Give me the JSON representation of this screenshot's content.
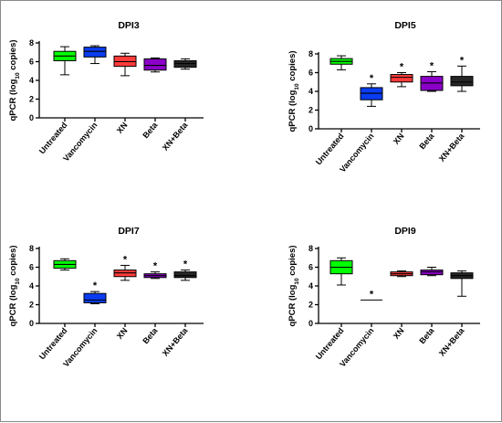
{
  "chart_data": [
    {
      "type": "box",
      "title": "DPI3",
      "ylabel": "qPCR (log10 copies)",
      "ylim": [
        0,
        8
      ],
      "yticks": [
        "0",
        "2",
        "4",
        "6",
        "8"
      ],
      "categories": [
        "Untreated",
        "Vancomycin",
        "XN",
        "Beta",
        "XN+Beta"
      ],
      "colors": [
        "#00ff00",
        "#0a3cf0",
        "#ff3b3b",
        "#8b00c8",
        "#262626"
      ],
      "boxes": [
        {
          "min": 4.6,
          "q1": 6.1,
          "median": 6.6,
          "q3": 7.1,
          "max": 7.6
        },
        {
          "min": 5.8,
          "q1": 6.5,
          "median": 7.1,
          "q3": 7.55,
          "max": 7.7
        },
        {
          "min": 4.5,
          "q1": 5.5,
          "median": 6.0,
          "q3": 6.6,
          "max": 6.9
        },
        {
          "min": 4.9,
          "q1": 5.1,
          "median": 5.6,
          "q3": 6.3,
          "max": 6.4
        },
        {
          "min": 5.2,
          "q1": 5.4,
          "median": 5.8,
          "q3": 6.1,
          "max": 6.3
        }
      ],
      "significant": [
        "",
        "",
        "",
        "",
        ""
      ]
    },
    {
      "type": "box",
      "title": "DPI5",
      "ylabel": "qPCR (log10 copies)",
      "ylim": [
        0,
        8
      ],
      "yticks": [
        "0",
        "2",
        "4",
        "6",
        "8"
      ],
      "categories": [
        "Untreated",
        "Vancomycin",
        "XN",
        "Beta",
        "XN+Beta"
      ],
      "colors": [
        "#00ff00",
        "#0a3cf0",
        "#ff3b3b",
        "#8b00c8",
        "#262626"
      ],
      "boxes": [
        {
          "min": 6.3,
          "q1": 6.9,
          "median": 7.2,
          "q3": 7.5,
          "max": 7.8
        },
        {
          "min": 2.4,
          "q1": 3.1,
          "median": 3.8,
          "q3": 4.4,
          "max": 4.8
        },
        {
          "min": 4.5,
          "q1": 5.0,
          "median": 5.5,
          "q3": 5.8,
          "max": 6.0
        },
        {
          "min": 4.0,
          "q1": 4.1,
          "median": 4.9,
          "q3": 5.6,
          "max": 6.1
        },
        {
          "min": 4.0,
          "q1": 4.6,
          "median": 5.0,
          "q3": 5.6,
          "max": 6.7
        }
      ],
      "significant": [
        "",
        "*",
        "*",
        "*",
        "*"
      ]
    },
    {
      "type": "box",
      "title": "DPI7",
      "ylabel": "qPCR (log10 copies)",
      "ylim": [
        0,
        8
      ],
      "yticks": [
        "0",
        "2",
        "4",
        "6",
        "8"
      ],
      "categories": [
        "Untreated",
        "Vancomycin",
        "XN",
        "Beta",
        "XN+Beta"
      ],
      "colors": [
        "#00ff00",
        "#0a3cf0",
        "#ff3b3b",
        "#8b00c8",
        "#262626"
      ],
      "boxes": [
        {
          "min": 5.7,
          "q1": 5.9,
          "median": 6.3,
          "q3": 6.7,
          "max": 6.9
        },
        {
          "min": 2.1,
          "q1": 2.2,
          "median": 2.5,
          "q3": 3.2,
          "max": 3.4
        },
        {
          "min": 4.6,
          "q1": 5.0,
          "median": 5.4,
          "q3": 5.7,
          "max": 6.2
        },
        {
          "min": 4.8,
          "q1": 4.9,
          "median": 5.1,
          "q3": 5.3,
          "max": 5.5
        },
        {
          "min": 4.6,
          "q1": 4.9,
          "median": 5.1,
          "q3": 5.5,
          "max": 5.7
        }
      ],
      "significant": [
        "",
        "*",
        "*",
        "*",
        "*"
      ]
    },
    {
      "type": "box",
      "title": "DPI9",
      "ylabel": "qPCR (log10 copies)",
      "ylim": [
        0,
        8
      ],
      "yticks": [
        "0",
        "2",
        "4",
        "6",
        "8"
      ],
      "categories": [
        "Untreated",
        "Vancomycin",
        "XN",
        "Beta",
        "XN+Beta"
      ],
      "colors": [
        "#00ff00",
        "#0a3cf0",
        "#ff3b3b",
        "#8b00c8",
        "#262626"
      ],
      "boxes": [
        {
          "min": 4.1,
          "q1": 5.3,
          "median": 6.0,
          "q3": 6.7,
          "max": 7.0
        },
        {
          "min": 2.5,
          "q1": 2.5,
          "median": 2.5,
          "q3": 2.5,
          "max": 2.5
        },
        {
          "min": 5.0,
          "q1": 5.1,
          "median": 5.3,
          "q3": 5.5,
          "max": 5.6
        },
        {
          "min": 5.1,
          "q1": 5.2,
          "median": 5.5,
          "q3": 5.7,
          "max": 6.0
        },
        {
          "min": 2.9,
          "q1": 4.8,
          "median": 5.1,
          "q3": 5.4,
          "max": 5.6
        }
      ],
      "significant": [
        "",
        "*",
        "",
        "",
        ""
      ]
    }
  ]
}
